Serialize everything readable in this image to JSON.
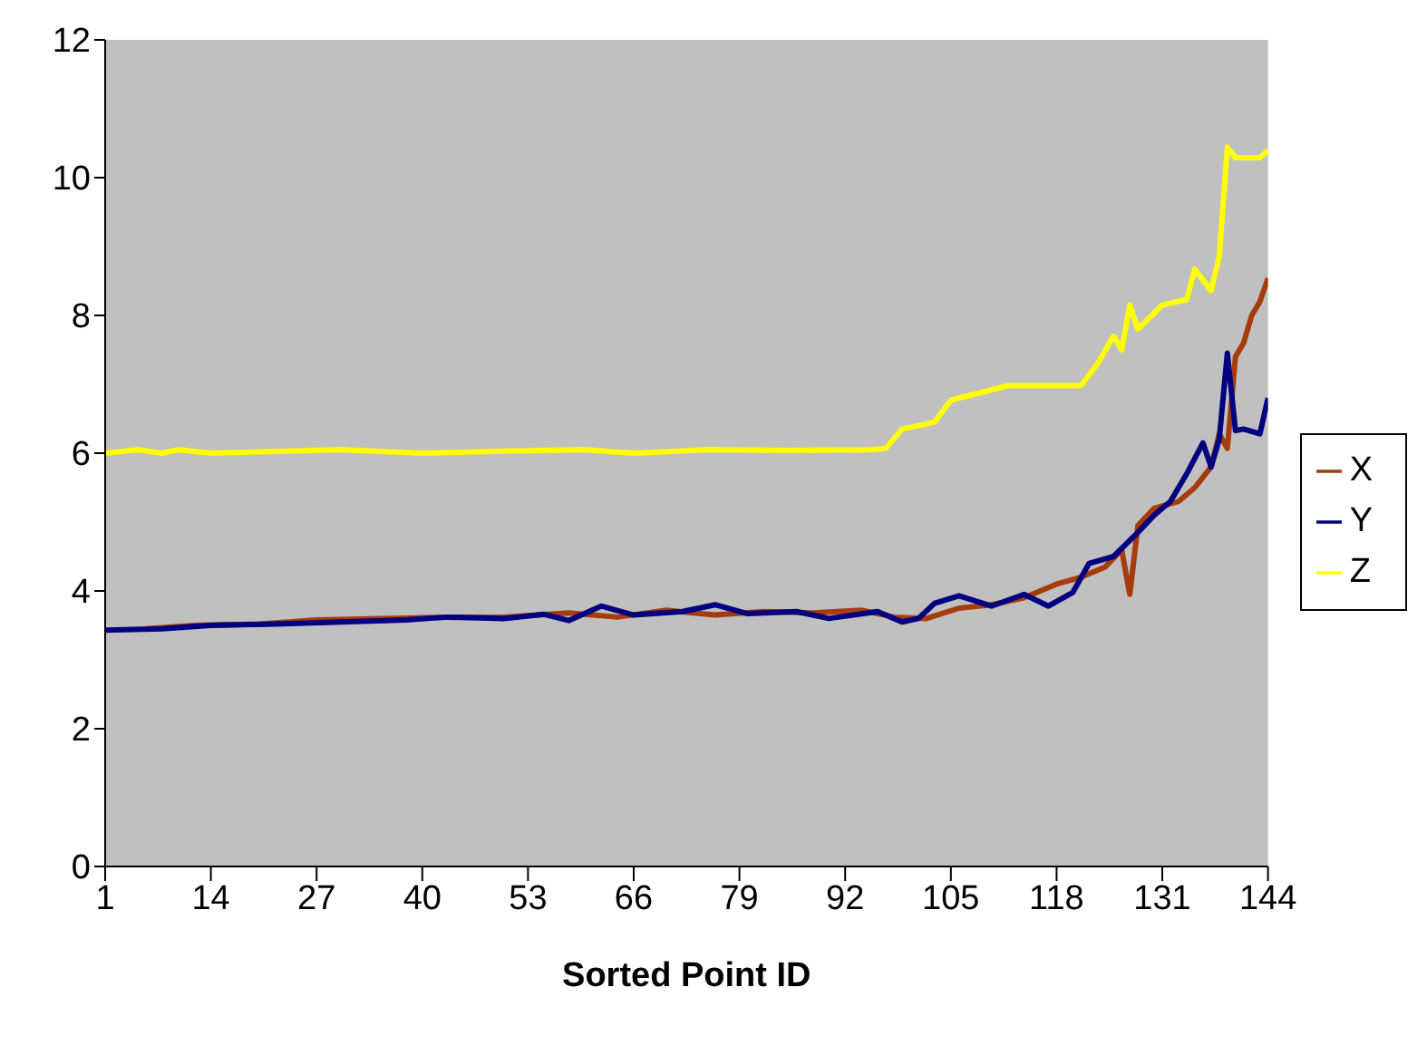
{
  "chart_data": {
    "type": "line",
    "xlabel": "Sorted Point ID",
    "xlim": [
      1,
      144
    ],
    "xticks": [
      1,
      14,
      27,
      40,
      53,
      66,
      79,
      92,
      105,
      118,
      131,
      144
    ],
    "ylim": [
      0,
      12
    ],
    "yticks": [
      0,
      2,
      4,
      6,
      8,
      10,
      12
    ],
    "grid": false,
    "legend": "right",
    "marker": "none",
    "line_style": "solid",
    "series": [
      {
        "name": "X",
        "color": "#a63c0c",
        "x": [
          6,
          12,
          20,
          27,
          35,
          43,
          50,
          58,
          64,
          70,
          76,
          82,
          88,
          94,
          98,
          102,
          106,
          110,
          114,
          118,
          121,
          124,
          126,
          127,
          128,
          130,
          133,
          135,
          137,
          138,
          139,
          140,
          141,
          142,
          143,
          144
        ],
        "values": [
          3.45,
          3.5,
          3.52,
          3.58,
          3.6,
          3.62,
          3.62,
          3.68,
          3.62,
          3.72,
          3.65,
          3.7,
          3.68,
          3.72,
          3.62,
          3.6,
          3.75,
          3.8,
          3.9,
          4.1,
          4.2,
          4.35,
          4.6,
          3.95,
          4.95,
          5.2,
          5.3,
          5.5,
          5.8,
          6.28,
          6.07,
          7.4,
          7.6,
          8.0,
          8.2,
          8.54
        ]
      },
      {
        "name": "Y",
        "color": "#000080",
        "x": [
          1,
          8,
          14,
          22,
          30,
          38,
          43,
          50,
          55,
          58,
          62,
          66,
          72,
          76,
          80,
          86,
          90,
          96,
          99,
          101,
          103,
          106,
          110,
          114,
          117,
          120,
          122,
          125,
          128,
          130,
          132,
          134,
          136,
          137,
          138,
          139,
          140,
          141,
          143,
          144
        ],
        "values": [
          3.43,
          3.45,
          3.5,
          3.52,
          3.55,
          3.58,
          3.62,
          3.6,
          3.66,
          3.57,
          3.78,
          3.65,
          3.7,
          3.8,
          3.67,
          3.7,
          3.6,
          3.7,
          3.55,
          3.6,
          3.82,
          3.93,
          3.78,
          3.95,
          3.78,
          3.98,
          4.4,
          4.5,
          4.85,
          5.1,
          5.3,
          5.7,
          6.15,
          5.8,
          6.2,
          7.45,
          6.33,
          6.35,
          6.28,
          6.8
        ]
      },
      {
        "name": "Z",
        "color": "#ffff00",
        "x": [
          1,
          5,
          8,
          10,
          14,
          20,
          30,
          40,
          50,
          60,
          66,
          75,
          85,
          95,
          97,
          99,
          103,
          105,
          112,
          121,
          123,
          125,
          126,
          127,
          128,
          131,
          134,
          135,
          137,
          138,
          139,
          140,
          143,
          144
        ],
        "values": [
          6.0,
          6.05,
          6.0,
          6.05,
          6.0,
          6.02,
          6.05,
          6.0,
          6.03,
          6.05,
          6.0,
          6.05,
          6.04,
          6.05,
          6.07,
          6.35,
          6.45,
          6.77,
          6.98,
          6.98,
          7.29,
          7.7,
          7.5,
          8.15,
          7.8,
          8.15,
          8.23,
          8.67,
          8.36,
          8.85,
          10.44,
          10.29,
          10.29,
          10.4
        ]
      }
    ]
  }
}
